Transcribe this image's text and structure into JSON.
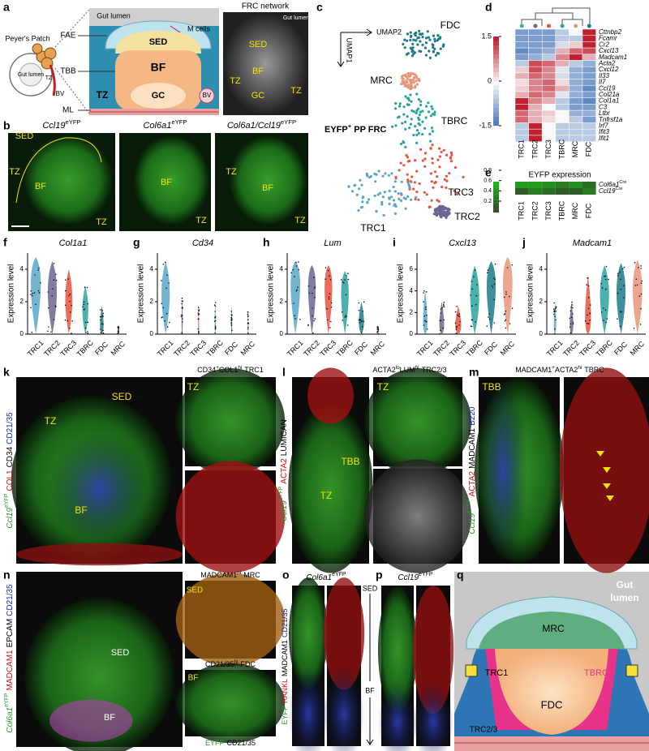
{
  "panel_letters": [
    "a",
    "b",
    "c",
    "d",
    "e",
    "f",
    "g",
    "h",
    "i",
    "j",
    "k",
    "l",
    "m",
    "n",
    "o",
    "p",
    "q"
  ],
  "a": {
    "left": [
      "Peyer's Patch",
      "Gut lumen",
      "TZ",
      "BV"
    ],
    "schematic": {
      "gut": "Gut lumen",
      "fae": "FAE",
      "mcells": "M cells",
      "sed": "SED",
      "bf": "BF",
      "gc": "GC",
      "tbb": "TBB",
      "tz": "TZ",
      "ml": "ML",
      "bv": "BV"
    },
    "image_title": "FRC network",
    "image": [
      "Gut lumen",
      "TZ",
      "SED",
      "BF",
      "GC",
      "TZ"
    ]
  },
  "b": {
    "images": [
      {
        "gene": "Ccl19",
        "sup": "eYFP",
        "labels": [
          "SED",
          "TZ",
          "BF",
          "TZ"
        ]
      },
      {
        "gene": "Col6a1",
        "sup": "eYFP",
        "labels": [
          "BF",
          "TZ"
        ]
      },
      {
        "gene": "Col6a1/Ccl19",
        "sup": "eYFP",
        "labels": [
          "TZ",
          "BF",
          "TZ"
        ]
      }
    ]
  },
  "c": {
    "axis_x": "UMAP2",
    "axis_y": "UMAP1",
    "title": [
      "EYFP",
      "+",
      "PP FRC"
    ],
    "clusters": [
      "FDC",
      "MRC",
      "TBRC",
      "TRC3",
      "TRC2",
      "TRC1"
    ]
  },
  "d": {
    "genes": [
      "Cttnbp2",
      "Fcamr",
      "Cr2",
      "Cxcl13",
      "Madcam1",
      "Acta2",
      "Cxcl12",
      "Il33",
      "Il7",
      "Ccl19",
      "Col21a",
      "Col1a1",
      "C3",
      "Ltbr",
      "Tnfrsf1a",
      "Irf7",
      "Ifit3",
      "Ifit1"
    ],
    "columns": [
      "TRC1",
      "TRC2",
      "TRC3",
      "TBRC",
      "MRC",
      "FDC"
    ],
    "values": [
      [
        -1,
        -1,
        -1,
        -0.5,
        0,
        1.5
      ],
      [
        -1,
        -1,
        -1,
        -0.5,
        -0.5,
        1.5
      ],
      [
        -1,
        -1,
        -1,
        -0.3,
        0.3,
        1.5
      ],
      [
        -1.2,
        -1,
        -0.8,
        0.5,
        1,
        1.2
      ],
      [
        -1,
        -0.8,
        -0.5,
        0.8,
        1.5,
        0.5
      ],
      [
        -0.5,
        1.2,
        1,
        0.5,
        -0.5,
        -0.8
      ],
      [
        0.3,
        1.2,
        0.8,
        -0.2,
        -0.8,
        -1
      ],
      [
        0.5,
        1,
        0.8,
        -0.3,
        -0.8,
        -1
      ],
      [
        0.2,
        0.8,
        1,
        0.2,
        -0.8,
        -1
      ],
      [
        0.3,
        0.8,
        1,
        0.5,
        -0.8,
        -1.2
      ],
      [
        0.5,
        1,
        0.8,
        -0.2,
        -0.8,
        -1
      ],
      [
        1.5,
        0.8,
        0.5,
        -0.5,
        -1,
        -1.2
      ],
      [
        1.5,
        0.5,
        0,
        -0.5,
        -1,
        -1
      ],
      [
        1,
        0.5,
        0.3,
        0,
        -0.8,
        -0.8
      ],
      [
        1,
        0.5,
        0.2,
        0,
        -0.5,
        -1
      ],
      [
        -0.5,
        1.5,
        0,
        -0.5,
        -0.5,
        -0.5
      ],
      [
        -0.5,
        1.5,
        0,
        -0.5,
        -0.5,
        -0.5
      ],
      [
        -0.5,
        1.5,
        0,
        -0.5,
        -0.5,
        -0.5
      ]
    ],
    "colorbar_ticks": [
      1.5,
      0,
      -1.5
    ]
  },
  "e": {
    "title": "EYFP expression",
    "rows": [
      {
        "gene": "Col6a1",
        "sup": "Cre"
      },
      {
        "gene": "Ccl19",
        "sup": "Cre"
      }
    ],
    "columns": [
      "TRC1",
      "TRC2",
      "TRC3",
      "TBRC",
      "MRC",
      "FDC"
    ],
    "values": [
      [
        0.7,
        0.7,
        0.6,
        0.5,
        0.6,
        0.4
      ],
      [
        0.3,
        0.5,
        0.4,
        0.3,
        0.3,
        0.5
      ]
    ],
    "colorbar_ticks": [
      0.8,
      0.6,
      0.4,
      0.2
    ]
  },
  "violins": {
    "y_label": "Expression level",
    "categories": [
      "TRC1",
      "TRC2",
      "TRC3",
      "TBRC",
      "FDC",
      "MRC"
    ],
    "panels": [
      {
        "gene": "Col1a1",
        "yticks": [
          0,
          2,
          4
        ]
      },
      {
        "gene": "Cd34",
        "yticks": [
          0,
          2,
          4
        ]
      },
      {
        "gene": "Lum",
        "yticks": [
          0,
          2,
          4
        ]
      },
      {
        "gene": "Cxcl13",
        "yticks": [
          0,
          2,
          4,
          6
        ]
      },
      {
        "gene": "Madcam1",
        "yticks": [
          0,
          2,
          4
        ]
      }
    ]
  },
  "k": {
    "channels": [
      "Ccl19",
      "eYFP",
      "COL1",
      "CD34",
      "CD21/35"
    ],
    "inset_title": [
      "CD34",
      "+",
      "COL1",
      "hi",
      "TRC1"
    ],
    "labels": [
      "SED",
      "TZ",
      "BF",
      "TZ"
    ]
  },
  "l": {
    "channels": [
      "Ccl19",
      "eYFP",
      "ACTA2",
      "LUMICAN"
    ],
    "inset_title": [
      "ACTA2",
      "lo",
      "LUM",
      "hi",
      "TRC2/3"
    ],
    "labels": [
      "TBB",
      "TZ",
      "TZ"
    ]
  },
  "m": {
    "channels": [
      "Ccl19",
      "eYFP",
      "ACTA2",
      "MADCAM1",
      "B220"
    ],
    "inset_title": [
      "MADCAM1",
      "+",
      "ACTA2",
      "hi",
      "TBRC"
    ],
    "labels": [
      "TBB"
    ]
  },
  "n": {
    "channels": [
      "Col6a1",
      "eYFP",
      "MADCAM1",
      "EPCAM",
      "CD21/35"
    ],
    "inset1_title": [
      "MADCAM1",
      "hi",
      "MRC"
    ],
    "inset1_label": "SED",
    "inset2_title": [
      "CD21/35",
      "hi",
      "FDC"
    ],
    "inset2_label": "BF",
    "inset_footer": [
      "EYFP",
      "CD21/35"
    ],
    "labels": [
      "SED",
      "BF"
    ]
  },
  "o": {
    "title": [
      "Col6a1",
      "eYFP"
    ],
    "channels": [
      "EYFP",
      "RANKL",
      "MADCAM1",
      "CD21/35"
    ],
    "axis": [
      "SED",
      "BF"
    ]
  },
  "p": {
    "title": [
      "Ccl19",
      "eYFP"
    ]
  },
  "q": {
    "labels": [
      "Gut",
      "lumen",
      "MRC",
      "TRC1",
      "TBRC",
      "FDC",
      "TRC2/3"
    ]
  }
}
